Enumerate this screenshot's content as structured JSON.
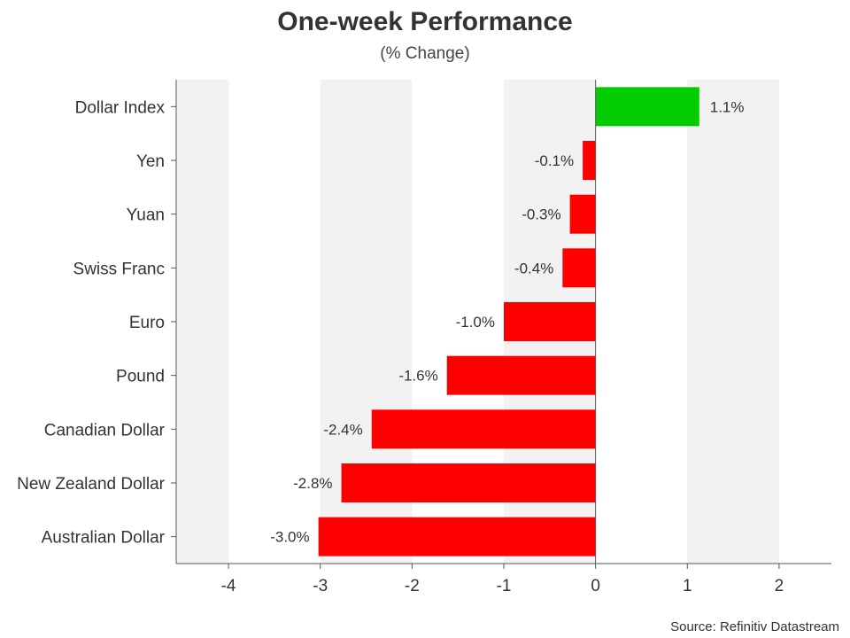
{
  "chart_data": {
    "type": "bar",
    "orientation": "horizontal",
    "title": "One-week Performance",
    "subtitle": "(% Change)",
    "source": "Source: Refinitiv Datastream",
    "categories": [
      "Dollar Index",
      "Yen",
      "Yuan",
      "Swiss Franc",
      "Euro",
      "Pound",
      "Canadian Dollar",
      "New Zealand Dollar",
      "Australian Dollar"
    ],
    "values": [
      1.13,
      -0.14,
      -0.28,
      -0.36,
      -1.0,
      -1.62,
      -2.44,
      -2.77,
      -3.02
    ],
    "value_labels": [
      "1.1%",
      "-0.1%",
      "-0.3%",
      "-0.4%",
      "-1.0%",
      "-1.6%",
      "-2.4%",
      "-2.8%",
      "-3.0%"
    ],
    "xlim": [
      -4.57,
      2.57
    ],
    "xticks": [
      -4,
      -3,
      -2,
      -1,
      0,
      1,
      2
    ],
    "grid": "alternating-bands",
    "colors": {
      "positive": "#00cc00",
      "negative": "#ff0000",
      "band": "#f2f2f2",
      "axis": "#555555"
    }
  }
}
